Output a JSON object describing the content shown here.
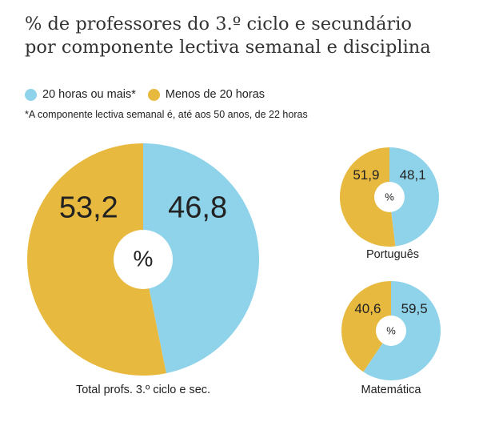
{
  "title_line1": "% de professores do 3.º ciclo e secundário",
  "title_line2": "por componente lectiva semanal e disciplina",
  "legend": [
    {
      "label": "20 horas ou mais*",
      "color": "#8fd3ea"
    },
    {
      "label": "Menos de 20 horas",
      "color": "#e8b93f"
    }
  ],
  "footnote": "*A componente lectiva semanal é, até aos 50 anos, de 22 horas",
  "colors": {
    "blue": "#8fd3ea",
    "yellow": "#e8b93f",
    "center": "#ffffff",
    "text": "#222222"
  },
  "chart_data": [
    {
      "type": "pie",
      "title": "Total profs. 3.º ciclo e sec.",
      "center_label": "%",
      "slices": [
        {
          "name": "20 horas ou mais*",
          "value": 46.8,
          "label": "46,8"
        },
        {
          "name": "Menos de 20 horas",
          "value": 53.2,
          "label": "53,2"
        }
      ]
    },
    {
      "type": "pie",
      "title": "Português",
      "center_label": "%",
      "slices": [
        {
          "name": "20 horas ou mais*",
          "value": 48.1,
          "label": "48,1"
        },
        {
          "name": "Menos de 20 horas",
          "value": 51.9,
          "label": "51,9"
        }
      ]
    },
    {
      "type": "pie",
      "title": "Matemática",
      "center_label": "%",
      "slices": [
        {
          "name": "20 horas ou mais*",
          "value": 59.5,
          "label": "59,5"
        },
        {
          "name": "Menos de 20 horas",
          "value": 40.6,
          "label": "40,6"
        }
      ]
    }
  ]
}
